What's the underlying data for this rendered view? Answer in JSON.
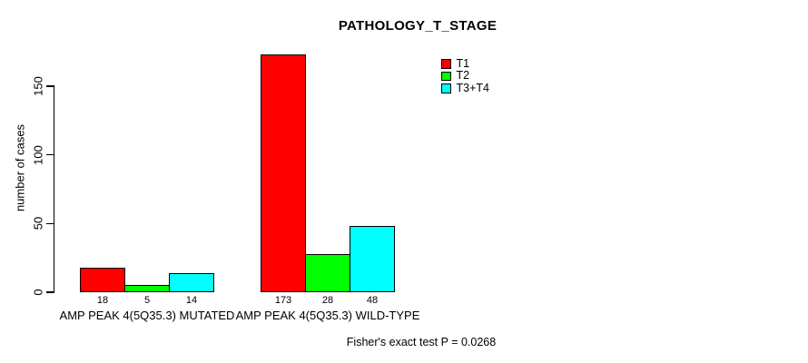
{
  "chart_data": {
    "type": "bar",
    "title": "PATHOLOGY_T_STAGE",
    "xlabel": "",
    "ylabel": "number of cases",
    "ylim": [
      0,
      175
    ],
    "yticks": [
      0,
      50,
      100,
      150
    ],
    "grid": false,
    "categories": [
      "AMP PEAK 4(5Q35.3) MUTATED",
      "AMP PEAK 4(5Q35.3) WILD-TYPE"
    ],
    "series": [
      {
        "name": "T1",
        "color": "#ff0000",
        "values": [
          18,
          173
        ]
      },
      {
        "name": "T2",
        "color": "#00ff00",
        "values": [
          5,
          28
        ]
      },
      {
        "name": "T3+T4",
        "color": "#00ffff",
        "values": [
          14,
          48
        ]
      }
    ],
    "bar_value_labels": [
      [
        18,
        5,
        14
      ],
      [
        173,
        28,
        48
      ]
    ],
    "bar_border_color": "#000000",
    "legend_position": "top-right",
    "legend_entries": [
      "T1",
      "T2",
      "T3+T4"
    ],
    "footnote": "Fisher's exact test P = 0.0268"
  }
}
